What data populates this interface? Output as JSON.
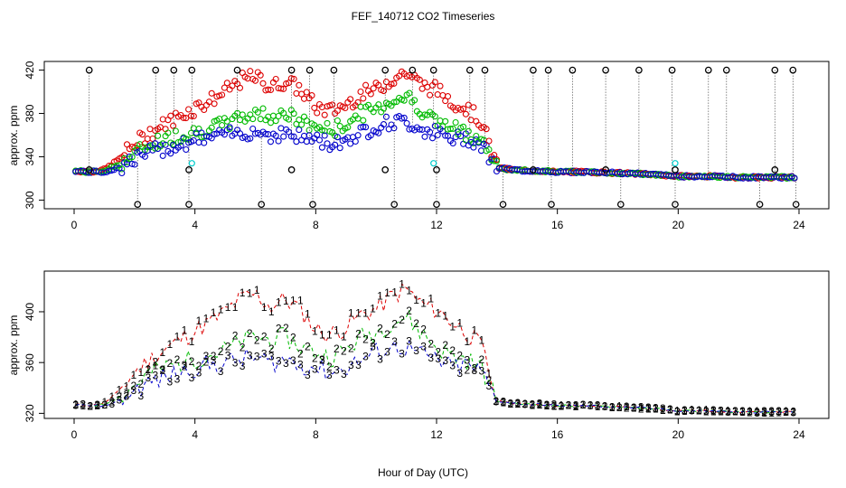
{
  "title": "FEF_140712  CO2 Timeseries",
  "xlabel": "Hour of Day (UTC)",
  "colors": {
    "series1": "#dd0000",
    "series2": "#00bb00",
    "series3": "#0000cc",
    "series4": "#00cccc",
    "flag": "#000000"
  },
  "chart_data": [
    {
      "type": "scatter",
      "panel": "top",
      "ylabel": "approx. ppm",
      "xlim": [
        0,
        24
      ],
      "ylim": [
        292,
        428
      ],
      "xticks": [
        "0",
        "4",
        "8",
        "12",
        "16",
        "20",
        "24"
      ],
      "yticks": [
        "300",
        "340",
        "380",
        "420"
      ],
      "flag_high": 420,
      "flag_low": 296,
      "flag_mid": 328,
      "series": [
        {
          "values_key": "s1",
          "x": [
            0.0,
            0.5,
            1.0,
            1.5,
            2.0,
            2.5,
            3.0,
            3.5,
            4.0,
            4.5,
            5.0,
            5.5,
            6.0,
            6.5,
            7.0,
            7.5,
            8.0,
            8.5,
            9.0,
            9.5,
            10.0,
            10.5,
            11.0,
            11.5,
            12.0,
            12.5,
            13.0,
            13.5,
            14.0,
            14.5,
            15.0,
            15.5,
            16.0,
            17.0,
            18.0,
            19.0,
            20.0,
            21.0,
            22.0,
            23.0,
            24.0
          ],
          "y": [
            327,
            326,
            328,
            338,
            352,
            362,
            370,
            378,
            385,
            392,
            400,
            410,
            414,
            404,
            410,
            402,
            386,
            382,
            388,
            398,
            402,
            412,
            418,
            406,
            402,
            392,
            384,
            372,
            330,
            328,
            327,
            327,
            326,
            326,
            325,
            324,
            322,
            322,
            321,
            321,
            321
          ]
        },
        {
          "values_key": "s2",
          "x": [
            0.0,
            0.5,
            1.0,
            1.5,
            2.0,
            2.5,
            3.0,
            3.5,
            4.0,
            4.5,
            5.0,
            5.5,
            6.0,
            6.5,
            7.0,
            7.5,
            8.0,
            8.5,
            9.0,
            9.5,
            10.0,
            10.5,
            11.0,
            11.5,
            12.0,
            12.5,
            13.0,
            13.5,
            14.0,
            14.5,
            15.0,
            15.5,
            16.0,
            17.0,
            18.0,
            19.0,
            20.0,
            21.0,
            22.0,
            23.0,
            24.0
          ],
          "y": [
            327,
            326,
            327,
            333,
            342,
            352,
            356,
            360,
            363,
            366,
            370,
            376,
            380,
            378,
            380,
            372,
            368,
            364,
            370,
            380,
            384,
            392,
            396,
            384,
            372,
            366,
            362,
            356,
            330,
            328,
            327,
            327,
            326,
            326,
            325,
            324,
            322,
            322,
            321,
            321,
            321
          ]
        },
        {
          "values_key": "s3",
          "x": [
            0.0,
            0.5,
            1.0,
            1.5,
            2.0,
            2.5,
            3.0,
            3.5,
            4.0,
            4.5,
            5.0,
            5.5,
            6.0,
            6.5,
            7.0,
            7.5,
            8.0,
            8.5,
            9.0,
            9.5,
            10.0,
            10.5,
            11.0,
            11.5,
            12.0,
            12.5,
            13.0,
            13.5,
            14.0,
            14.5,
            15.0,
            15.5,
            16.0,
            17.0,
            18.0,
            19.0,
            20.0,
            21.0,
            22.0,
            23.0,
            24.0
          ],
          "y": [
            327,
            326,
            326,
            330,
            338,
            344,
            348,
            352,
            356,
            358,
            360,
            362,
            364,
            360,
            362,
            358,
            356,
            352,
            356,
            362,
            368,
            372,
            372,
            366,
            362,
            356,
            358,
            352,
            330,
            328,
            327,
            327,
            326,
            326,
            325,
            324,
            322,
            322,
            321,
            321,
            321
          ]
        }
      ]
    },
    {
      "type": "line",
      "panel": "bottom",
      "ylabel": "approx. ppm",
      "xlim": [
        0,
        24
      ],
      "ylim": [
        316,
        432
      ],
      "xticks": [
        "0",
        "4",
        "8",
        "12",
        "16",
        "20",
        "24"
      ],
      "yticks": [
        "320",
        "360",
        "400"
      ],
      "series_labels": [
        "1",
        "2",
        "3"
      ]
    }
  ]
}
